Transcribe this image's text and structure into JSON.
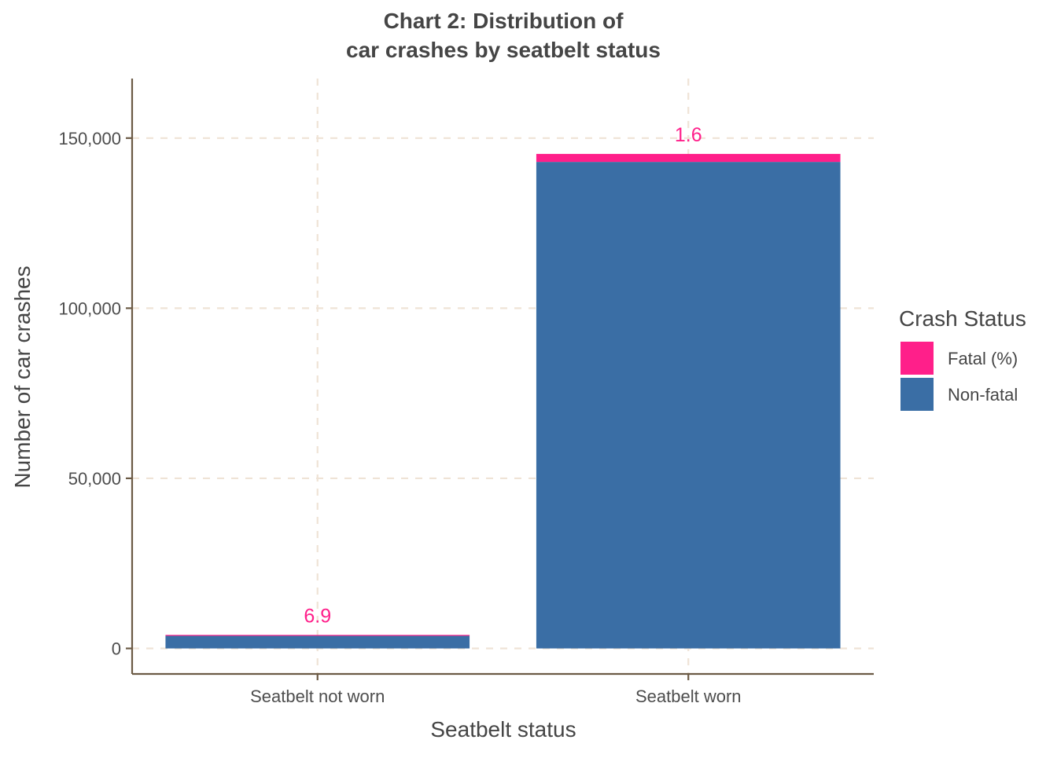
{
  "chart_data": {
    "type": "bar",
    "stacked": true,
    "title_lines": [
      "Chart 2: Distribution of",
      "car crashes by seatbelt status"
    ],
    "xlabel": "Seatbelt status",
    "ylabel": "Number of car crashes",
    "categories": [
      "Seatbelt not worn",
      "Seatbelt worn"
    ],
    "ylim": [
      -7500,
      167500
    ],
    "yticks": [
      0,
      50000,
      100000,
      150000
    ],
    "ytick_labels": [
      "0",
      "50,000",
      "100,000",
      "150,000"
    ],
    "series": [
      {
        "name": "Non-fatal",
        "color": "#3A6EA5",
        "values": [
          3700,
          143000
        ]
      },
      {
        "name": "Fatal (%)",
        "color": "#FF1F8A",
        "values": [
          275,
          2350
        ]
      }
    ],
    "data_labels": [
      "6.9",
      "1.6"
    ],
    "data_label_color": "#FF1F8A",
    "legend": {
      "title": "Crash Status",
      "position": "right",
      "items": [
        {
          "label": "Fatal (%)",
          "color": "#FF1F8A"
        },
        {
          "label": "Non-fatal",
          "color": "#3A6EA5"
        }
      ]
    },
    "grid": {
      "major": true,
      "style": "dashed",
      "color": "#EFE3D6"
    },
    "axis_color": "#6B5A45"
  }
}
